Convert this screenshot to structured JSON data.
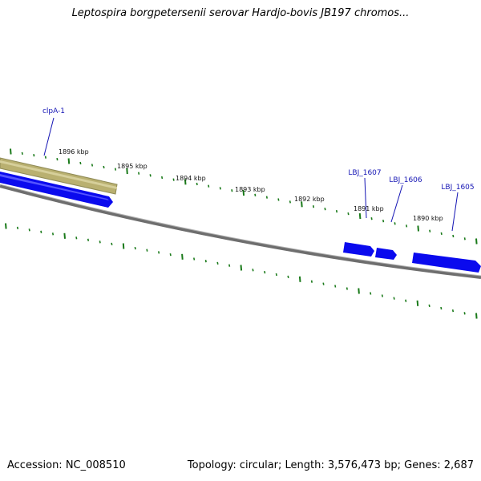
{
  "title": "Leptospira borgpetersenii serovar Hardjo-bovis JB197 chromos...",
  "footer": {
    "accession": "Accession: NC_008510",
    "summary": "Topology: circular; Length: 3,576,473 bp; Genes: 2,687"
  },
  "colors": {
    "gene": "#0a0aee",
    "gene_highlight": "#b9b070",
    "tick": "#1a7a1a",
    "backbone": "#7a7a7a",
    "label": "#1414b4"
  },
  "ticks": [
    {
      "label": "1896 kbp"
    },
    {
      "label": "1895 kbp"
    },
    {
      "label": "1894 kbp"
    },
    {
      "label": "1893 kbp"
    },
    {
      "label": "1892 kbp"
    },
    {
      "label": "1891 kbp"
    },
    {
      "label": "1890 kbp"
    }
  ],
  "genes": [
    {
      "name": "clpA-1"
    },
    {
      "name": "LBJ_1607"
    },
    {
      "name": "LBJ_1606"
    },
    {
      "name": "LBJ_1605"
    }
  ]
}
